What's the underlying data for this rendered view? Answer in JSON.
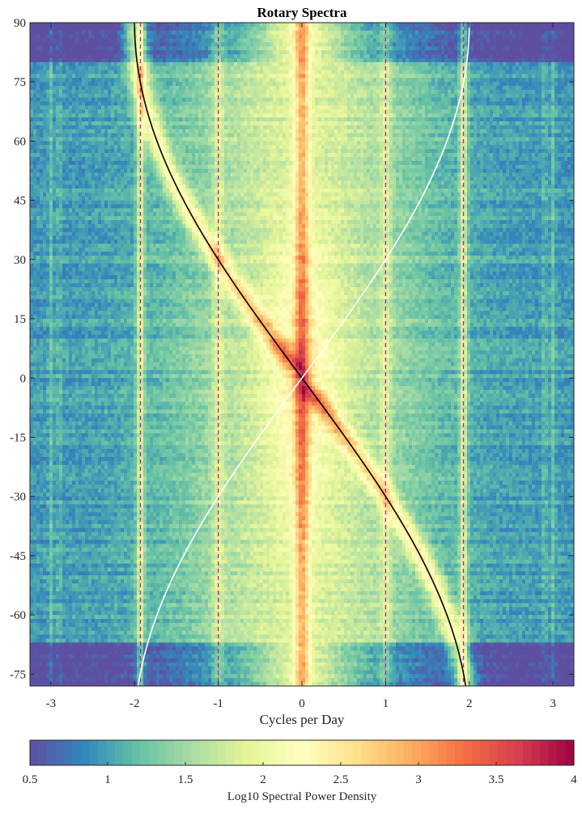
{
  "chart_data": {
    "type": "heatmap",
    "title": "Rotary Spectra",
    "xlabel": "Cycles per Day",
    "ylabel": "",
    "xlim": [
      -3.25,
      3.25
    ],
    "ylim": [
      -78,
      90
    ],
    "x_ticks": [
      -3,
      -2,
      -1,
      0,
      1,
      2,
      3
    ],
    "x_tick_labels": [
      "-3",
      "-2",
      "-1",
      "0",
      "1",
      "2",
      "3"
    ],
    "y_ticks": [
      90,
      75,
      60,
      45,
      30,
      15,
      0,
      -15,
      -30,
      -45,
      -60,
      -75
    ],
    "y_tick_labels": [
      "90",
      "75",
      "60",
      "45",
      "30",
      "15",
      "0",
      "-15",
      "-30",
      "-45",
      "-60",
      "-75"
    ],
    "colorbar": {
      "label": "Log10 Spectral Power Density",
      "range": [
        0.5,
        4
      ],
      "ticks": [
        0.5,
        1,
        1.5,
        2,
        2.5,
        3,
        3.5,
        4
      ],
      "tick_labels": [
        "0.5",
        "1",
        "1.5",
        "2",
        "2.5",
        "3",
        "3.5",
        "4"
      ],
      "colormap": "spectral (reversed)",
      "colors": [
        "#5e4fa2",
        "#3288bd",
        "#66c2a5",
        "#abdda4",
        "#e6f598",
        "#ffffbf",
        "#fee08b",
        "#fdae61",
        "#f46d43",
        "#d53e4f",
        "#9e0142"
      ]
    },
    "reference_lines": [
      {
        "kind": "vertical",
        "style": "dashed",
        "color": "#b0209a",
        "x_values": [
          -1.93,
          -1,
          1,
          1.93
        ]
      },
      {
        "kind": "curve",
        "style": "solid",
        "color": "#000000",
        "description_equation": "x = -2*sin(latitude)"
      },
      {
        "kind": "curve",
        "style": "solid",
        "color": "#ffffff",
        "description_equation": "x = 2*sin(latitude)"
      }
    ],
    "features": {
      "central_ridge_x": 0,
      "band_low_power_lat_above": 80,
      "band_low_power_lat_below": -66
    }
  }
}
